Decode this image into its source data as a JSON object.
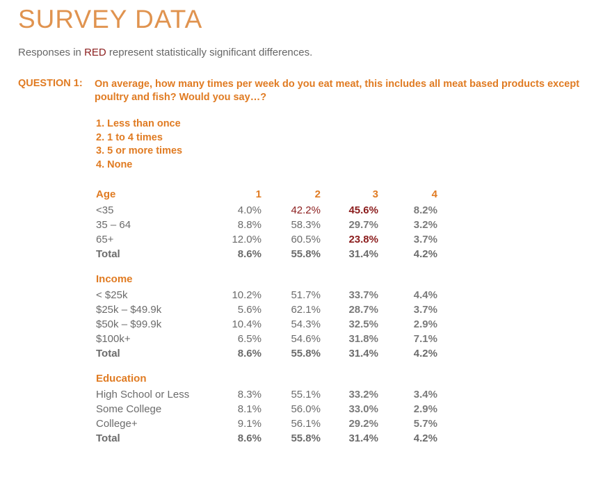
{
  "header": {
    "title": "SURVEY DATA",
    "subtitle_pre": "Responses in ",
    "subtitle_red": "RED",
    "subtitle_post": " represent statistically significant differences."
  },
  "question": {
    "label": "QUESTION 1:",
    "text": "On average, how many times per week do you eat meat, this includes all meat based products except poultry and fish? Would you say…?",
    "options": [
      "1.  Less than once",
      "2.  1 to 4 times",
      "3.  5 or more times",
      "4.  None"
    ]
  },
  "colors": {
    "accent": "#e07b22",
    "significant": "#8b1d1d",
    "text": "#6b6b6b"
  },
  "table": {
    "sections": [
      {
        "heading": "Age",
        "columns": [
          "1",
          "2",
          "3",
          "4"
        ],
        "rows": [
          {
            "label": "<35",
            "values": [
              "4.0%",
              "42.2%",
              "45.6%",
              "8.2%"
            ],
            "significant": [
              false,
              true,
              true,
              false
            ]
          },
          {
            "label": "35 – 64",
            "values": [
              "8.8%",
              "58.3%",
              "29.7%",
              "3.2%"
            ],
            "significant": [
              false,
              false,
              false,
              false
            ]
          },
          {
            "label": "65+",
            "values": [
              "12.0%",
              "60.5%",
              "23.8%",
              "3.7%"
            ],
            "significant": [
              false,
              false,
              true,
              false
            ]
          }
        ],
        "total": {
          "label": "Total",
          "values": [
            "8.6%",
            "55.8%",
            "31.4%",
            "4.2%"
          ]
        }
      },
      {
        "heading": "Income",
        "rows": [
          {
            "label": "< $25k",
            "values": [
              "10.2%",
              "51.7%",
              "33.7%",
              "4.4%"
            ],
            "significant": [
              false,
              false,
              false,
              false
            ]
          },
          {
            "label": "$25k – $49.9k",
            "values": [
              "5.6%",
              "62.1%",
              "28.7%",
              "3.7%"
            ],
            "significant": [
              false,
              false,
              false,
              false
            ]
          },
          {
            "label": "$50k – $99.9k",
            "values": [
              "10.4%",
              "54.3%",
              "32.5%",
              "2.9%"
            ],
            "significant": [
              false,
              false,
              false,
              false
            ]
          },
          {
            "label": "$100k+",
            "values": [
              "6.5%",
              "54.6%",
              "31.8%",
              "7.1%"
            ],
            "significant": [
              false,
              false,
              false,
              false
            ]
          }
        ],
        "total": {
          "label": "Total",
          "values": [
            "8.6%",
            "55.8%",
            "31.4%",
            "4.2%"
          ]
        }
      },
      {
        "heading": "Education",
        "rows": [
          {
            "label": "High School or Less",
            "values": [
              "8.3%",
              "55.1%",
              "33.2%",
              "3.4%"
            ],
            "significant": [
              false,
              false,
              false,
              false
            ]
          },
          {
            "label": "Some College",
            "values": [
              "8.1%",
              "56.0%",
              "33.0%",
              "2.9%"
            ],
            "significant": [
              false,
              false,
              false,
              false
            ]
          },
          {
            "label": "College+",
            "values": [
              "9.1%",
              "56.1%",
              "29.2%",
              "5.7%"
            ],
            "significant": [
              false,
              false,
              false,
              false
            ]
          }
        ],
        "total": {
          "label": "Total",
          "values": [
            "8.6%",
            "55.8%",
            "31.4%",
            "4.2%"
          ]
        }
      }
    ]
  }
}
